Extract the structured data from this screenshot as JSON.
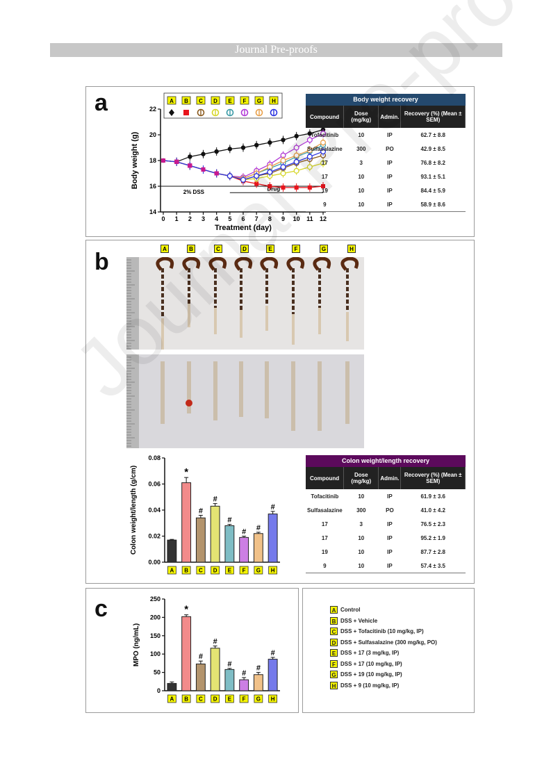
{
  "header": {
    "banner": "Journal Pre-proofs"
  },
  "watermark": "Journal Pre-proofs",
  "panel_labels": {
    "a": "a",
    "b": "b",
    "c": "c"
  },
  "groups": [
    "A",
    "B",
    "C",
    "D",
    "E",
    "F",
    "G",
    "H"
  ],
  "group_colors": {
    "A": "#111111",
    "B": "#e8141c",
    "C": "#8a5a1e",
    "D": "#d6d628",
    "E": "#3a9aa6",
    "F": "#b13ad6",
    "G": "#e8a04a",
    "H": "#2a32e0"
  },
  "legend_items": [
    {
      "key": "A",
      "label": "Control"
    },
    {
      "key": "B",
      "label": "DSS + Vehicle"
    },
    {
      "key": "C",
      "label": "DSS + Tofacitinib (10 mg/kg, IP)"
    },
    {
      "key": "D",
      "label": "DSS + Sulfasalazine (300 mg/kg, PO)"
    },
    {
      "key": "E",
      "label": "DSS + 17 (3 mg/kg, IP)"
    },
    {
      "key": "F",
      "label": "DSS + 17 (10 mg/kg, IP)"
    },
    {
      "key": "G",
      "label": "DSS + 19 (10 mg/kg, IP)"
    },
    {
      "key": "H",
      "label": "DSS + 9 (10 mg/kg, IP)"
    }
  ],
  "body_weight_table": {
    "title": "Body weight recovery",
    "title_color": "#24496e",
    "headers": [
      "Compound",
      "Dose (mg/kg)",
      "Admin.",
      "Recovery (%) (Mean ± SEM)"
    ],
    "rows": [
      [
        "Tofacitinib",
        "10",
        "IP",
        "62.7 ± 8.8"
      ],
      [
        "Sulfasalazine",
        "300",
        "PO",
        "42.9 ± 8.5"
      ],
      [
        "17",
        "3",
        "IP",
        "76.8 ± 8.2"
      ],
      [
        "17",
        "10",
        "IP",
        "93.1 ± 5.1"
      ],
      [
        "19",
        "10",
        "IP",
        "84.4 ± 5.9"
      ],
      [
        "9",
        "10",
        "IP",
        "58.9 ± 8.6"
      ]
    ]
  },
  "colon_table": {
    "title": "Colon weight/length recovery",
    "title_color": "#5c0a5c",
    "headers": [
      "Compound",
      "Dose (mg/kg)",
      "Admin.",
      "Recovery (%) (Mean ± SEM)"
    ],
    "rows": [
      [
        "Tofacitinib",
        "10",
        "IP",
        "61.9 ± 3.6"
      ],
      [
        "Sulfasalazine",
        "300",
        "PO",
        "41.0 ± 4.2"
      ],
      [
        "17",
        "3",
        "IP",
        "76.5 ± 2.3"
      ],
      [
        "17",
        "10",
        "IP",
        "95.2 ± 1.9"
      ],
      [
        "19",
        "10",
        "IP",
        "87.7 ± 2.8"
      ],
      [
        "9",
        "10",
        "IP",
        "57.4 ± 3.5"
      ]
    ]
  },
  "chart_data": [
    {
      "type": "line",
      "xlabel": "Treatment (day)",
      "ylabel": "Body weight (g)",
      "x": [
        0,
        1,
        2,
        3,
        4,
        5,
        6,
        7,
        8,
        9,
        10,
        11,
        12
      ],
      "ylim": [
        14,
        22
      ],
      "yticks": [
        14,
        16,
        18,
        20,
        22
      ],
      "annotations": [
        "2% DSS",
        "Drug"
      ],
      "series": [
        {
          "name": "A",
          "values": [
            18.0,
            17.9,
            18.3,
            18.5,
            18.7,
            18.9,
            19.0,
            19.2,
            19.4,
            19.6,
            19.9,
            20.1,
            20.4
          ]
        },
        {
          "name": "B",
          "values": [
            18.0,
            17.9,
            17.6,
            17.3,
            17.0,
            16.8,
            16.4,
            16.2,
            16.0,
            15.9,
            15.9,
            15.9,
            16.0
          ]
        },
        {
          "name": "C",
          "values": [
            18.0,
            17.9,
            17.6,
            17.3,
            17.0,
            16.8,
            16.5,
            16.8,
            17.0,
            17.4,
            17.8,
            18.1,
            18.4
          ]
        },
        {
          "name": "D",
          "values": [
            18.0,
            17.9,
            17.6,
            17.3,
            17.0,
            16.8,
            16.5,
            16.6,
            16.8,
            17.0,
            17.2,
            17.5,
            17.8
          ]
        },
        {
          "name": "E",
          "values": [
            18.0,
            17.9,
            17.6,
            17.3,
            17.0,
            16.8,
            16.6,
            17.0,
            17.4,
            17.8,
            18.3,
            18.7,
            19.2
          ]
        },
        {
          "name": "F",
          "values": [
            18.0,
            17.9,
            17.6,
            17.3,
            17.0,
            16.8,
            16.7,
            17.2,
            17.7,
            18.4,
            19.0,
            19.6,
            20.1
          ]
        },
        {
          "name": "G",
          "values": [
            18.0,
            17.9,
            17.6,
            17.3,
            17.0,
            16.8,
            16.6,
            17.0,
            17.5,
            18.0,
            18.4,
            18.8,
            19.4
          ]
        },
        {
          "name": "H",
          "values": [
            18.0,
            17.9,
            17.6,
            17.3,
            17.0,
            16.8,
            16.5,
            16.8,
            17.1,
            17.5,
            17.9,
            18.3,
            18.7
          ]
        }
      ]
    },
    {
      "type": "bar",
      "ylabel": "Colon weight/length (g/cm)",
      "categories": [
        "A",
        "B",
        "C",
        "D",
        "E",
        "F",
        "G",
        "H"
      ],
      "values": [
        0.017,
        0.061,
        0.034,
        0.043,
        0.028,
        0.019,
        0.022,
        0.037
      ],
      "errors": [
        0.0005,
        0.004,
        0.002,
        0.002,
        0.001,
        0.001,
        0.001,
        0.002
      ],
      "ylim": [
        0,
        0.08
      ],
      "yticks": [
        "0.00",
        "0.02",
        "0.04",
        "0.06",
        "0.08"
      ],
      "markers": [
        "",
        "*",
        "#",
        "#",
        "#",
        "#",
        "#",
        "#"
      ]
    },
    {
      "type": "bar",
      "ylabel": "MPO (ng/mL)",
      "categories": [
        "A",
        "B",
        "C",
        "D",
        "E",
        "F",
        "G",
        "H"
      ],
      "values": [
        20,
        202,
        73,
        116,
        58,
        30,
        44,
        86
      ],
      "errors": [
        4,
        5,
        8,
        6,
        3,
        6,
        6,
        5
      ],
      "ylim": [
        0,
        250
      ],
      "yticks": [
        "0",
        "50",
        "100",
        "150",
        "200",
        "250"
      ],
      "markers": [
        "",
        "*",
        "#",
        "#",
        "#",
        "#",
        "#",
        "#"
      ]
    }
  ]
}
